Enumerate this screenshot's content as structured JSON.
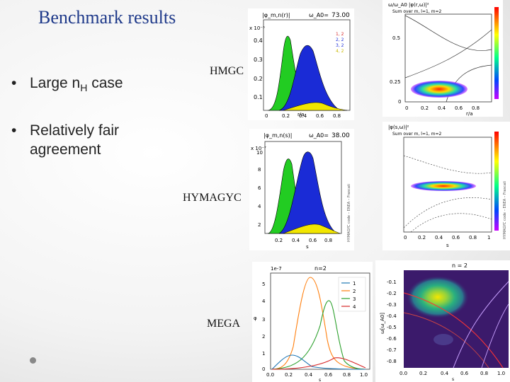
{
  "title": "Benchmark results",
  "bullets": [
    {
      "pre": "Large n",
      "sub": "H",
      "post": " case"
    },
    {
      "line1": "Relatively fair",
      "line2": "agreement"
    }
  ],
  "codes": [
    "HMGC",
    "HYMAGYC",
    "MEGA"
  ],
  "panels": {
    "hmgc_profile": {
      "header_left": "|φ_m,n(r)|",
      "header_right_label": "ω_A0=",
      "header_right_value": "73.00",
      "exp": "x 10⁻⁵",
      "legend": [
        "1, 2",
        "2, 2",
        "3, 2",
        "4, 2"
      ],
      "yticks": [
        "0.4",
        "0.3",
        "0.2",
        "0.1"
      ],
      "xticks": [
        "0",
        "0.2",
        "0.4",
        "0.6",
        "0.8"
      ],
      "xlabel": "r/a"
    },
    "hmgc_map": {
      "header": "ω/ω_A0  |φ(r,ω)|²",
      "header2": "Sum over m, l=1, m=2",
      "yticks": [
        "0.5",
        "0.25",
        "0"
      ],
      "xticks": [
        "0",
        "0.2",
        "0.4",
        "0.6",
        "0.8"
      ],
      "xlabel": "r/a"
    },
    "hymagyc_profile": {
      "header_left": "|φ_m,n(s)|",
      "header_right_label": "ω_A0=",
      "header_right_value": "38.00",
      "exp": "x 10⁻⁷",
      "yticks": [
        "10",
        "8",
        "6",
        "4",
        "2"
      ],
      "xticks": [
        "0.2",
        "0.4",
        "0.6",
        "0.8"
      ],
      "xlabel": "s",
      "side_label": "HYMAGYC code – ENEA – Frascati"
    },
    "hymagyc_map": {
      "header": "|φ(s,ω)|²",
      "header2": "Sum over m, l=1, m=2",
      "xticks": [
        "0",
        "0.2",
        "0.4",
        "0.6",
        "0.8",
        "1"
      ],
      "xlabel": "s",
      "side_label": "HYMAGYC code – ENEA – Frascati"
    },
    "mega_profile": {
      "exp": "1e-7",
      "title": "n=2",
      "legend": [
        "1",
        "2",
        "3",
        "4"
      ],
      "yticks": [
        "5",
        "4",
        "3",
        "2",
        "1",
        "0"
      ],
      "xticks": [
        "0.0",
        "0.2",
        "0.4",
        "0.6",
        "0.8",
        "1.0"
      ],
      "xlabel": "s",
      "ylabel": "φ"
    },
    "mega_map": {
      "title": "n = 2",
      "ylabel": "ω[ω_A0]",
      "yticks": [
        "-0.1",
        "-0.2",
        "-0.3",
        "-0.4",
        "-0.5",
        "-0.6",
        "-0.7",
        "-0.8"
      ],
      "xticks": [
        "0.0",
        "0.2",
        "0.4",
        "0.6",
        "0.8",
        "1.0"
      ],
      "xlabel": "s"
    }
  },
  "colors": {
    "title": "#1f3a8a",
    "green": "#22cc22",
    "blue": "#1a2bd6",
    "yellow": "#f2e600",
    "mega_blue": "#1f77b4",
    "mega_orange": "#ff7f0e",
    "mega_green": "#2ca02c",
    "mega_red": "#d62728"
  }
}
